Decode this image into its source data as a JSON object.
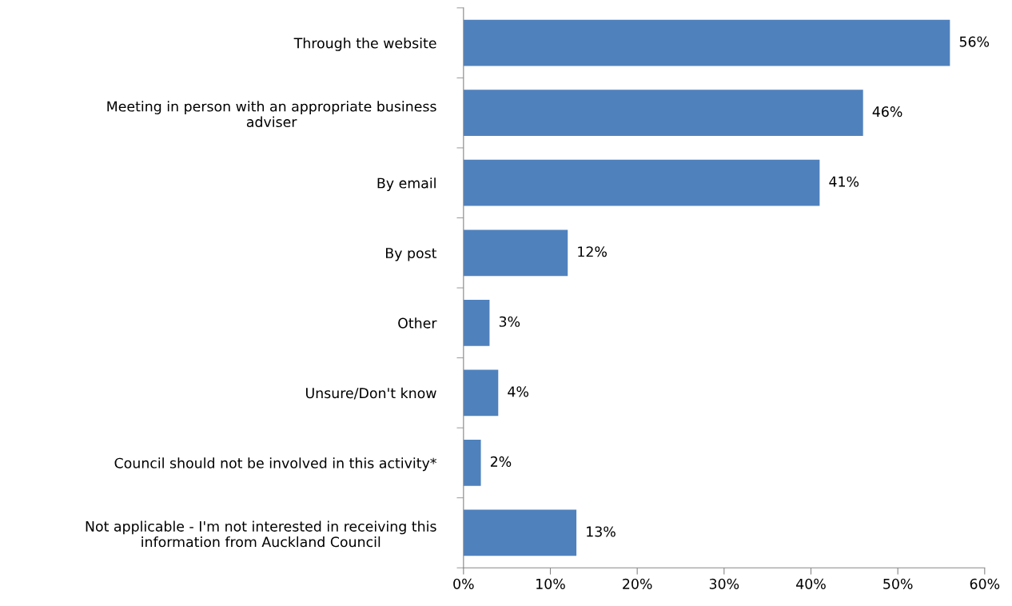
{
  "chart_data": {
    "type": "bar",
    "orientation": "horizontal",
    "categories": [
      "Through the website",
      "Meeting in person with an appropriate business\nadviser",
      "By email",
      "By post",
      "Other",
      "Unsure/Don't know",
      "Council should not be involved in this activity*",
      "Not applicable - I'm not interested in receiving this\ninformation from Auckland Council"
    ],
    "values": [
      56,
      46,
      41,
      12,
      3,
      4,
      2,
      13
    ],
    "value_labels": [
      "56%",
      "46%",
      "41%",
      "12%",
      "3%",
      "4%",
      "2%",
      "13%"
    ],
    "color": "#4f81bd",
    "xlim": [
      0,
      60
    ],
    "xticks": [
      {
        "value": 0,
        "label": "0%"
      },
      {
        "value": 10,
        "label": "10%"
      },
      {
        "value": 20,
        "label": "20%"
      },
      {
        "value": 30,
        "label": "30%"
      },
      {
        "value": 40,
        "label": "40%"
      },
      {
        "value": 50,
        "label": "50%"
      },
      {
        "value": 60,
        "label": "60%"
      }
    ],
    "grid": false
  }
}
